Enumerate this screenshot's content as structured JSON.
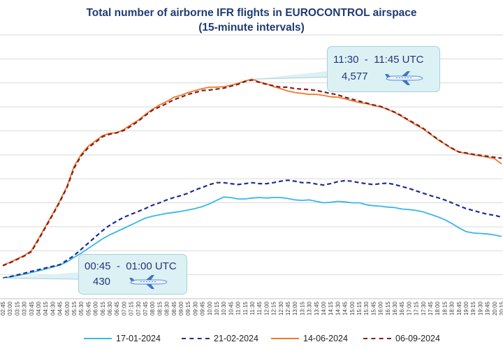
{
  "chart_data": {
    "type": "line",
    "title": "Total number of airborne IFR flights in EUROCONTROL airspace",
    "subtitle": "(15-minute intervals)",
    "xlabel": "",
    "ylabel": "",
    "grid": true,
    "legend_position": "bottom",
    "x": [
      "02:45",
      "03:00",
      "03:15",
      "03:30",
      "03:45",
      "04:00",
      "04:15",
      "04:30",
      "04:45",
      "05:00",
      "05:15",
      "05:30",
      "05:45",
      "06:00",
      "06:15",
      "06:30",
      "06:45",
      "07:00",
      "07:15",
      "07:30",
      "07:45",
      "08:00",
      "08:15",
      "08:30",
      "08:45",
      "09:00",
      "09:15",
      "09:30",
      "09:45",
      "10:00",
      "10:15",
      "10:30",
      "10:45",
      "11:00",
      "11:15",
      "11:30",
      "11:45",
      "12:00",
      "12:15",
      "12:30",
      "12:45",
      "13:00",
      "13:15",
      "13:30",
      "13:45",
      "14:00",
      "14:15",
      "14:30",
      "14:45",
      "15:00",
      "15:15",
      "15:30",
      "15:45",
      "16:00",
      "16:15",
      "16:30",
      "16:45",
      "17:00",
      "17:15",
      "17:30",
      "17:45",
      "18:00",
      "18:15",
      "18:30",
      "18:45",
      "19:00",
      "19:15",
      "19:30",
      "19:45",
      "20:00",
      "20:15"
    ],
    "series": [
      {
        "name": "17-01-2024",
        "color": "#36b8e8",
        "dash": "solid",
        "values": [
          430,
          455,
          480,
          510,
          545,
          580,
          620,
          660,
          700,
          770,
          860,
          950,
          1050,
          1150,
          1250,
          1330,
          1400,
          1470,
          1540,
          1610,
          1680,
          1720,
          1750,
          1780,
          1800,
          1820,
          1850,
          1880,
          1920,
          1980,
          2050,
          2120,
          2110,
          2080,
          2080,
          2100,
          2110,
          2100,
          2110,
          2110,
          2090,
          2060,
          2050,
          2060,
          2030,
          2000,
          2010,
          2030,
          2020,
          2000,
          2000,
          1960,
          1940,
          1930,
          1910,
          1900,
          1870,
          1860,
          1840,
          1810,
          1760,
          1710,
          1650,
          1570,
          1480,
          1400,
          1370,
          1360,
          1350,
          1330,
          1300
        ],
        "dashed": false
      },
      {
        "name": "21-02-2024",
        "color": "#1f2d8e",
        "dash": "dash",
        "values": [
          430,
          460,
          495,
          530,
          570,
          605,
          640,
          675,
          710,
          800,
          900,
          1030,
          1160,
          1290,
          1420,
          1530,
          1620,
          1700,
          1760,
          1820,
          1880,
          1950,
          2000,
          2060,
          2110,
          2150,
          2200,
          2270,
          2320,
          2380,
          2420,
          2420,
          2400,
          2380,
          2400,
          2420,
          2400,
          2400,
          2420,
          2450,
          2470,
          2450,
          2420,
          2420,
          2390,
          2370,
          2400,
          2440,
          2460,
          2450,
          2420,
          2400,
          2380,
          2400,
          2410,
          2380,
          2340,
          2300,
          2250,
          2200,
          2150,
          2110,
          2060,
          2000,
          1940,
          1880,
          1840,
          1800,
          1760,
          1740,
          1700
        ],
        "dashed": true
      },
      {
        "name": "14-06-2024",
        "color": "#ee7a2a",
        "dash": "solid",
        "values": [
          700,
          760,
          830,
          900,
          1000,
          1250,
          1510,
          1770,
          2040,
          2340,
          2760,
          3010,
          3180,
          3290,
          3400,
          3450,
          3460,
          3530,
          3630,
          3720,
          3840,
          3950,
          4040,
          4110,
          4200,
          4240,
          4300,
          4340,
          4380,
          4410,
          4410,
          4420,
          4450,
          4490,
          4540,
          4577,
          4520,
          4480,
          4420,
          4380,
          4330,
          4300,
          4280,
          4260,
          4260,
          4240,
          4210,
          4200,
          4170,
          4130,
          4090,
          4070,
          4030,
          4000,
          3950,
          3880,
          3800,
          3710,
          3620,
          3540,
          3430,
          3320,
          3230,
          3130,
          3060,
          3030,
          3000,
          2980,
          2950,
          2920,
          2810
        ],
        "dashed": false
      },
      {
        "name": "06-09-2024",
        "color": "#8b1a1a",
        "dash": "dash",
        "values": [
          690,
          750,
          820,
          890,
          980,
          1230,
          1490,
          1750,
          2020,
          2320,
          2720,
          2980,
          3150,
          3260,
          3380,
          3430,
          3460,
          3510,
          3600,
          3700,
          3820,
          3930,
          4000,
          4070,
          4150,
          4200,
          4260,
          4300,
          4340,
          4350,
          4370,
          4390,
          4430,
          4470,
          4530,
          4560,
          4510,
          4470,
          4440,
          4410,
          4410,
          4380,
          4370,
          4360,
          4340,
          4310,
          4280,
          4250,
          4200,
          4160,
          4120,
          4080,
          4040,
          4010,
          3950,
          3890,
          3810,
          3720,
          3640,
          3550,
          3440,
          3330,
          3230,
          3140,
          3060,
          3040,
          3010,
          2990,
          2970,
          2950,
          2930
        ],
        "dashed": true
      }
    ],
    "annotations": [
      {
        "time": "11:30  -  11:45 UTC",
        "value": "4,577"
      },
      {
        "time": "00:45  -  01:00 UTC",
        "value": "430"
      }
    ],
    "icon": "airplane-icon"
  }
}
